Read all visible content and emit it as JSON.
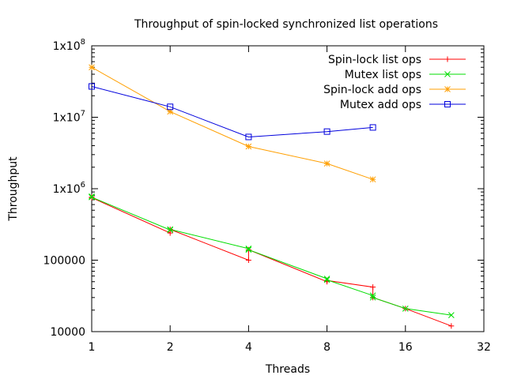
{
  "chart_data": {
    "type": "line",
    "title": "Throughput of spin-locked synchronized list operations",
    "xlabel": "Threads",
    "ylabel": "Throughput",
    "x_scale": "log2",
    "y_scale": "log10",
    "xlim": [
      1,
      32
    ],
    "ylim": [
      10000,
      100000000
    ],
    "x_ticks": [
      1,
      2,
      4,
      8,
      16,
      32
    ],
    "x_tick_labels": [
      "1",
      "2",
      "4",
      "8",
      "16",
      "32"
    ],
    "y_ticks": [
      10000,
      100000,
      1000000,
      10000000,
      100000000
    ],
    "y_tick_labels": [
      "10000",
      "100000",
      "1x10^6",
      "1x10^7",
      "1x10^8"
    ],
    "legend_position": "top-right",
    "grid": false,
    "series": [
      {
        "name": "Spin-lock list ops",
        "color": "#ff0000",
        "marker": "plus",
        "points": [
          [
            1,
            760000
          ],
          [
            1,
            750000
          ],
          [
            2,
            240000
          ],
          [
            2,
            270000
          ],
          [
            4,
            100000
          ],
          [
            4,
            140000
          ],
          [
            8,
            50000
          ],
          [
            8,
            52000
          ],
          [
            12,
            42000
          ],
          [
            12,
            30000
          ],
          [
            16,
            21000
          ],
          [
            24,
            12000
          ]
        ]
      },
      {
        "name": "Mutex list ops",
        "color": "#00dd00",
        "marker": "x",
        "points": [
          [
            1,
            780000
          ],
          [
            1,
            760000
          ],
          [
            2,
            265000
          ],
          [
            2,
            270000
          ],
          [
            4,
            145000
          ],
          [
            4,
            140000
          ],
          [
            8,
            55000
          ],
          [
            8,
            53000
          ],
          [
            12,
            32000
          ],
          [
            12,
            30000
          ],
          [
            16,
            21000
          ],
          [
            24,
            17000
          ]
        ]
      },
      {
        "name": "Spin-lock add ops",
        "color": "#ff9f00",
        "marker": "star",
        "points": [
          [
            1,
            50000000
          ],
          [
            2,
            12000000
          ],
          [
            4,
            3900000
          ],
          [
            8,
            2250000
          ],
          [
            12,
            1350000
          ]
        ]
      },
      {
        "name": "Mutex add ops",
        "color": "#0000dd",
        "marker": "square",
        "points": [
          [
            1,
            27000000
          ],
          [
            2,
            14000000
          ],
          [
            4,
            5300000
          ],
          [
            8,
            6300000
          ],
          [
            12,
            7200000
          ]
        ]
      }
    ]
  }
}
